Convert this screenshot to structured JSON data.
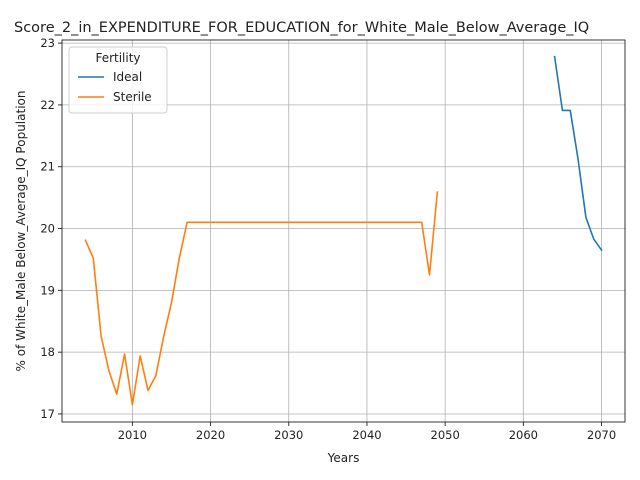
{
  "chart_data": {
    "type": "line",
    "title": "Score_2_in_EXPENDITURE_FOR_EDUCATION_for_White_Male_Below_Average_IQ",
    "xlabel": "Years",
    "ylabel": "% of White_Male Below_Average_IQ Population",
    "xlim": [
      2001,
      2073
    ],
    "ylim": [
      16.87,
      23.05
    ],
    "xticks": [
      2010,
      2020,
      2030,
      2040,
      2050,
      2060,
      2070
    ],
    "yticks": [
      17,
      18,
      19,
      20,
      21,
      22,
      23
    ],
    "grid": true,
    "legend": {
      "title": "Fertility",
      "placement": "top-left"
    },
    "series": [
      {
        "name": "Ideal",
        "color": "#1f77b4",
        "x": [
          2064,
          2065,
          2066,
          2067,
          2068,
          2069,
          2070
        ],
        "y": [
          22.78,
          21.91,
          21.91,
          21.12,
          20.18,
          19.83,
          19.65
        ]
      },
      {
        "name": "Sterile",
        "color": "#ff7f0e",
        "x": [
          2004,
          2005,
          2006,
          2007,
          2008,
          2009,
          2010,
          2011,
          2012,
          2013,
          2014,
          2015,
          2016,
          2017,
          2018,
          2019,
          2020,
          2021,
          2022,
          2023,
          2024,
          2025,
          2026,
          2027,
          2028,
          2029,
          2030,
          2031,
          2032,
          2033,
          2034,
          2035,
          2036,
          2037,
          2038,
          2039,
          2040,
          2041,
          2042,
          2043,
          2044,
          2045,
          2046,
          2047,
          2048,
          2049
        ],
        "y": [
          19.81,
          19.52,
          18.26,
          17.7,
          17.32,
          17.97,
          17.15,
          17.94,
          17.38,
          17.62,
          18.25,
          18.8,
          19.52,
          20.1,
          20.1,
          20.1,
          20.1,
          20.1,
          20.1,
          20.1,
          20.1,
          20.1,
          20.1,
          20.1,
          20.1,
          20.1,
          20.1,
          20.1,
          20.1,
          20.1,
          20.1,
          20.1,
          20.1,
          20.1,
          20.1,
          20.1,
          20.1,
          20.1,
          20.1,
          20.1,
          20.1,
          20.1,
          20.1,
          20.1,
          19.25,
          20.59
        ]
      }
    ]
  }
}
